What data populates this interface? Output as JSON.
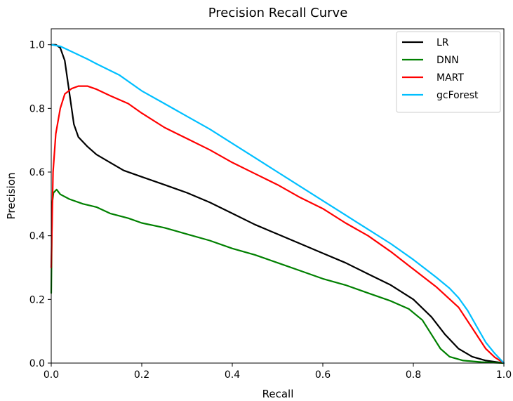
{
  "chart_data": {
    "type": "line",
    "title": "Precision Recall Curve",
    "xlabel": "Recall",
    "ylabel": "Precision",
    "xlim": [
      0.0,
      1.0
    ],
    "ylim": [
      0.0,
      1.05
    ],
    "xticks": [
      "0.0",
      "0.2",
      "0.4",
      "0.6",
      "0.8",
      "1.0"
    ],
    "yticks": [
      "0.0",
      "0.2",
      "0.4",
      "0.6",
      "0.8",
      "1.0"
    ],
    "grid": false,
    "legend_position": "top-right",
    "series": [
      {
        "name": "LR",
        "color": "#000000",
        "points": [
          [
            0.0,
            1.0
          ],
          [
            0.01,
            1.0
          ],
          [
            0.02,
            0.99
          ],
          [
            0.03,
            0.95
          ],
          [
            0.04,
            0.85
          ],
          [
            0.05,
            0.75
          ],
          [
            0.06,
            0.71
          ],
          [
            0.08,
            0.68
          ],
          [
            0.1,
            0.655
          ],
          [
            0.13,
            0.63
          ],
          [
            0.16,
            0.605
          ],
          [
            0.2,
            0.585
          ],
          [
            0.25,
            0.56
          ],
          [
            0.3,
            0.535
          ],
          [
            0.35,
            0.505
          ],
          [
            0.4,
            0.47
          ],
          [
            0.45,
            0.435
          ],
          [
            0.5,
            0.405
          ],
          [
            0.55,
            0.375
          ],
          [
            0.6,
            0.345
          ],
          [
            0.65,
            0.315
          ],
          [
            0.7,
            0.28
          ],
          [
            0.75,
            0.245
          ],
          [
            0.8,
            0.2
          ],
          [
            0.84,
            0.145
          ],
          [
            0.87,
            0.09
          ],
          [
            0.9,
            0.045
          ],
          [
            0.93,
            0.02
          ],
          [
            0.96,
            0.008
          ],
          [
            1.0,
            0.0
          ]
        ]
      },
      {
        "name": "DNN",
        "color": "#008000",
        "points": [
          [
            0.0,
            0.22
          ],
          [
            0.002,
            0.5
          ],
          [
            0.005,
            0.535
          ],
          [
            0.012,
            0.545
          ],
          [
            0.02,
            0.53
          ],
          [
            0.04,
            0.515
          ],
          [
            0.07,
            0.5
          ],
          [
            0.1,
            0.49
          ],
          [
            0.13,
            0.47
          ],
          [
            0.17,
            0.455
          ],
          [
            0.2,
            0.44
          ],
          [
            0.25,
            0.425
          ],
          [
            0.3,
            0.405
          ],
          [
            0.35,
            0.385
          ],
          [
            0.4,
            0.36
          ],
          [
            0.45,
            0.34
          ],
          [
            0.5,
            0.315
          ],
          [
            0.55,
            0.29
          ],
          [
            0.6,
            0.265
          ],
          [
            0.65,
            0.245
          ],
          [
            0.7,
            0.22
          ],
          [
            0.75,
            0.195
          ],
          [
            0.79,
            0.17
          ],
          [
            0.82,
            0.135
          ],
          [
            0.84,
            0.09
          ],
          [
            0.86,
            0.045
          ],
          [
            0.88,
            0.02
          ],
          [
            0.91,
            0.008
          ],
          [
            0.95,
            0.003
          ],
          [
            1.0,
            0.0
          ]
        ]
      },
      {
        "name": "MART",
        "color": "#ff0000",
        "points": [
          [
            0.0,
            0.3
          ],
          [
            0.004,
            0.6
          ],
          [
            0.01,
            0.72
          ],
          [
            0.02,
            0.8
          ],
          [
            0.03,
            0.845
          ],
          [
            0.045,
            0.862
          ],
          [
            0.06,
            0.87
          ],
          [
            0.08,
            0.87
          ],
          [
            0.1,
            0.86
          ],
          [
            0.13,
            0.84
          ],
          [
            0.17,
            0.815
          ],
          [
            0.2,
            0.785
          ],
          [
            0.25,
            0.74
          ],
          [
            0.3,
            0.705
          ],
          [
            0.35,
            0.67
          ],
          [
            0.4,
            0.63
          ],
          [
            0.45,
            0.595
          ],
          [
            0.5,
            0.56
          ],
          [
            0.55,
            0.52
          ],
          [
            0.6,
            0.485
          ],
          [
            0.65,
            0.44
          ],
          [
            0.7,
            0.4
          ],
          [
            0.75,
            0.35
          ],
          [
            0.8,
            0.295
          ],
          [
            0.85,
            0.24
          ],
          [
            0.9,
            0.175
          ],
          [
            0.93,
            0.11
          ],
          [
            0.96,
            0.045
          ],
          [
            0.98,
            0.018
          ],
          [
            1.0,
            0.0
          ]
        ]
      },
      {
        "name": "gcForest",
        "color": "#00bfff",
        "points": [
          [
            0.0,
            1.0
          ],
          [
            0.02,
            0.995
          ],
          [
            0.05,
            0.975
          ],
          [
            0.08,
            0.955
          ],
          [
            0.1,
            0.94
          ],
          [
            0.15,
            0.905
          ],
          [
            0.2,
            0.855
          ],
          [
            0.25,
            0.815
          ],
          [
            0.3,
            0.775
          ],
          [
            0.35,
            0.735
          ],
          [
            0.4,
            0.69
          ],
          [
            0.45,
            0.645
          ],
          [
            0.5,
            0.6
          ],
          [
            0.55,
            0.555
          ],
          [
            0.6,
            0.51
          ],
          [
            0.65,
            0.465
          ],
          [
            0.7,
            0.42
          ],
          [
            0.75,
            0.375
          ],
          [
            0.8,
            0.325
          ],
          [
            0.85,
            0.27
          ],
          [
            0.88,
            0.235
          ],
          [
            0.9,
            0.205
          ],
          [
            0.92,
            0.165
          ],
          [
            0.94,
            0.115
          ],
          [
            0.96,
            0.065
          ],
          [
            0.98,
            0.03
          ],
          [
            1.0,
            0.0
          ]
        ]
      }
    ]
  }
}
